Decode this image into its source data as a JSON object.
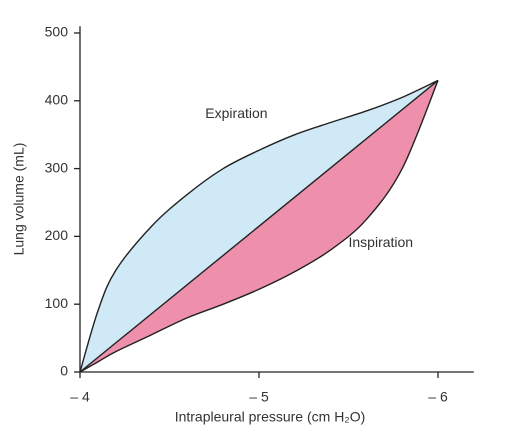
{
  "chart_data": {
    "type": "line",
    "xlabel": "Intrapleural pressure (cm H₂O)",
    "ylabel": "Lung volume (mL)",
    "x": [
      -4,
      -4.1,
      -4.2,
      -4.4,
      -4.6,
      -4.8,
      -5,
      -5.2,
      -5.4,
      -5.6,
      -5.8,
      -6
    ],
    "series": [
      {
        "name": "Expiration",
        "color": "#222222",
        "fill": "#cfe9f6",
        "values": [
          0,
          90,
          150,
          215,
          262,
          300,
          327,
          350,
          368,
          385,
          405,
          430
        ]
      },
      {
        "name": "Inspiration",
        "color": "#222222",
        "fill": "#ee90ab",
        "values": [
          0,
          15,
          30,
          55,
          80,
          100,
          122,
          148,
          180,
          225,
          300,
          430
        ]
      }
    ],
    "xlim": [
      -4,
      -6.2
    ],
    "ylim": [
      0,
      510
    ],
    "xticks": [
      {
        "value": -4,
        "label": "– 4"
      },
      {
        "value": -5,
        "label": "– 5"
      },
      {
        "value": -6,
        "label": "– 6"
      }
    ],
    "yticks": [
      0,
      100,
      200,
      300,
      400,
      500
    ]
  }
}
